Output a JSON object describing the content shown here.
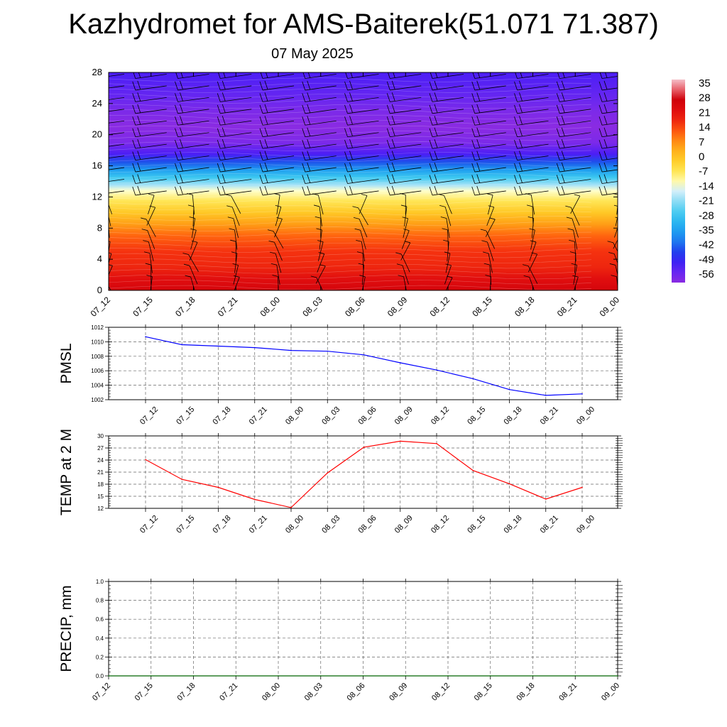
{
  "title": "Kazhydromet for AMS-Baiterek(51.071 71.387)",
  "subtitle": "07 May 2025",
  "colorbar": {
    "labels": [
      "35",
      "28",
      "21",
      "14",
      "7",
      "0",
      "-7",
      "-14",
      "-21",
      "-28",
      "-35",
      "-42",
      "-49",
      "-56"
    ]
  },
  "chart_data": [
    {
      "type": "heatmap",
      "name": "upper-air-temperature-and-wind",
      "xlabels": [
        "07_12",
        "07_15",
        "07_18",
        "07_21",
        "08_00",
        "08_03",
        "08_06",
        "08_09",
        "08_12",
        "08_15",
        "08_18",
        "08_21",
        "09_00"
      ],
      "yticks": [
        0,
        4,
        8,
        12,
        16,
        20,
        24,
        28
      ],
      "ylim": [
        0,
        28
      ],
      "color_range": [
        -60,
        35
      ],
      "temperature_profile": [
        {
          "height": 0,
          "value": 24
        },
        {
          "height": 1.5,
          "value": 20
        },
        {
          "height": 3,
          "value": 16
        },
        {
          "height": 5,
          "value": 14
        },
        {
          "height": 7,
          "value": 10
        },
        {
          "height": 8.5,
          "value": 4
        },
        {
          "height": 10,
          "value": -2
        },
        {
          "height": 11.5,
          "value": -8
        },
        {
          "height": 12.8,
          "value": -14
        },
        {
          "height": 13.5,
          "value": -20
        },
        {
          "height": 14.5,
          "value": -28
        },
        {
          "height": 15.5,
          "value": -36
        },
        {
          "height": 16.5,
          "value": -44
        },
        {
          "height": 17.5,
          "value": -52
        },
        {
          "height": 19,
          "value": -58
        },
        {
          "height": 21,
          "value": -60
        },
        {
          "height": 23,
          "value": -58
        },
        {
          "height": 25,
          "value": -55
        },
        {
          "height": 28,
          "value": -52
        }
      ],
      "wind_barb_heights": [
        0.5,
        2,
        3.5,
        5,
        6.5,
        8,
        9.5,
        11,
        12.5,
        14,
        15.5,
        17,
        18.5,
        20,
        21.5,
        23,
        24.5,
        26,
        27.5
      ]
    },
    {
      "type": "line",
      "name": "pmsl",
      "ylabel": "PMSL",
      "ylim": [
        1002,
        1012
      ],
      "yticks": [
        1002,
        1004,
        1006,
        1008,
        1010,
        1012
      ],
      "categories": [
        "07_12",
        "07_15",
        "07_18",
        "07_21",
        "08_00",
        "08_03",
        "08_06",
        "08_09",
        "08_12",
        "08_15",
        "08_18",
        "08_21",
        "09_00"
      ],
      "values": [
        1010.7,
        1009.6,
        1009.4,
        1009.2,
        1008.8,
        1008.7,
        1008.2,
        1007.1,
        1006.1,
        1004.9,
        1003.4,
        1002.6,
        1002.8
      ],
      "color": "#0000ff",
      "grid": true
    },
    {
      "type": "line",
      "name": "temp-2m",
      "ylabel": "TEMP at 2 M",
      "ylim": [
        12,
        30
      ],
      "yticks": [
        12,
        15,
        18,
        21,
        24,
        27,
        30
      ],
      "categories": [
        "07_12",
        "07_15",
        "07_18",
        "07_21",
        "08_00",
        "08_03",
        "08_06",
        "08_09",
        "08_12",
        "08_15",
        "08_18",
        "08_21",
        "09_00"
      ],
      "values": [
        24.1,
        19.2,
        17.2,
        14.2,
        12.2,
        20.8,
        27.2,
        28.7,
        28.1,
        21.4,
        18.1,
        14.3,
        17.2
      ],
      "color": "#ff0000",
      "grid": true
    },
    {
      "type": "line",
      "name": "precip",
      "ylabel": "PRECIP, mm",
      "ylim": [
        0,
        1
      ],
      "yticks": [
        "0.0",
        "0.2",
        "0.4",
        "0.6",
        "0.8",
        "1.0"
      ],
      "categories": [
        "07_12",
        "07_15",
        "07_18",
        "07_21",
        "08_00",
        "08_03",
        "08_06",
        "08_09",
        "08_12",
        "08_15",
        "08_18",
        "08_21",
        "09_00"
      ],
      "values": [
        0,
        0,
        0,
        0,
        0,
        0,
        0,
        0,
        0,
        0,
        0,
        0,
        0
      ],
      "color": "#006400",
      "grid": true
    }
  ]
}
